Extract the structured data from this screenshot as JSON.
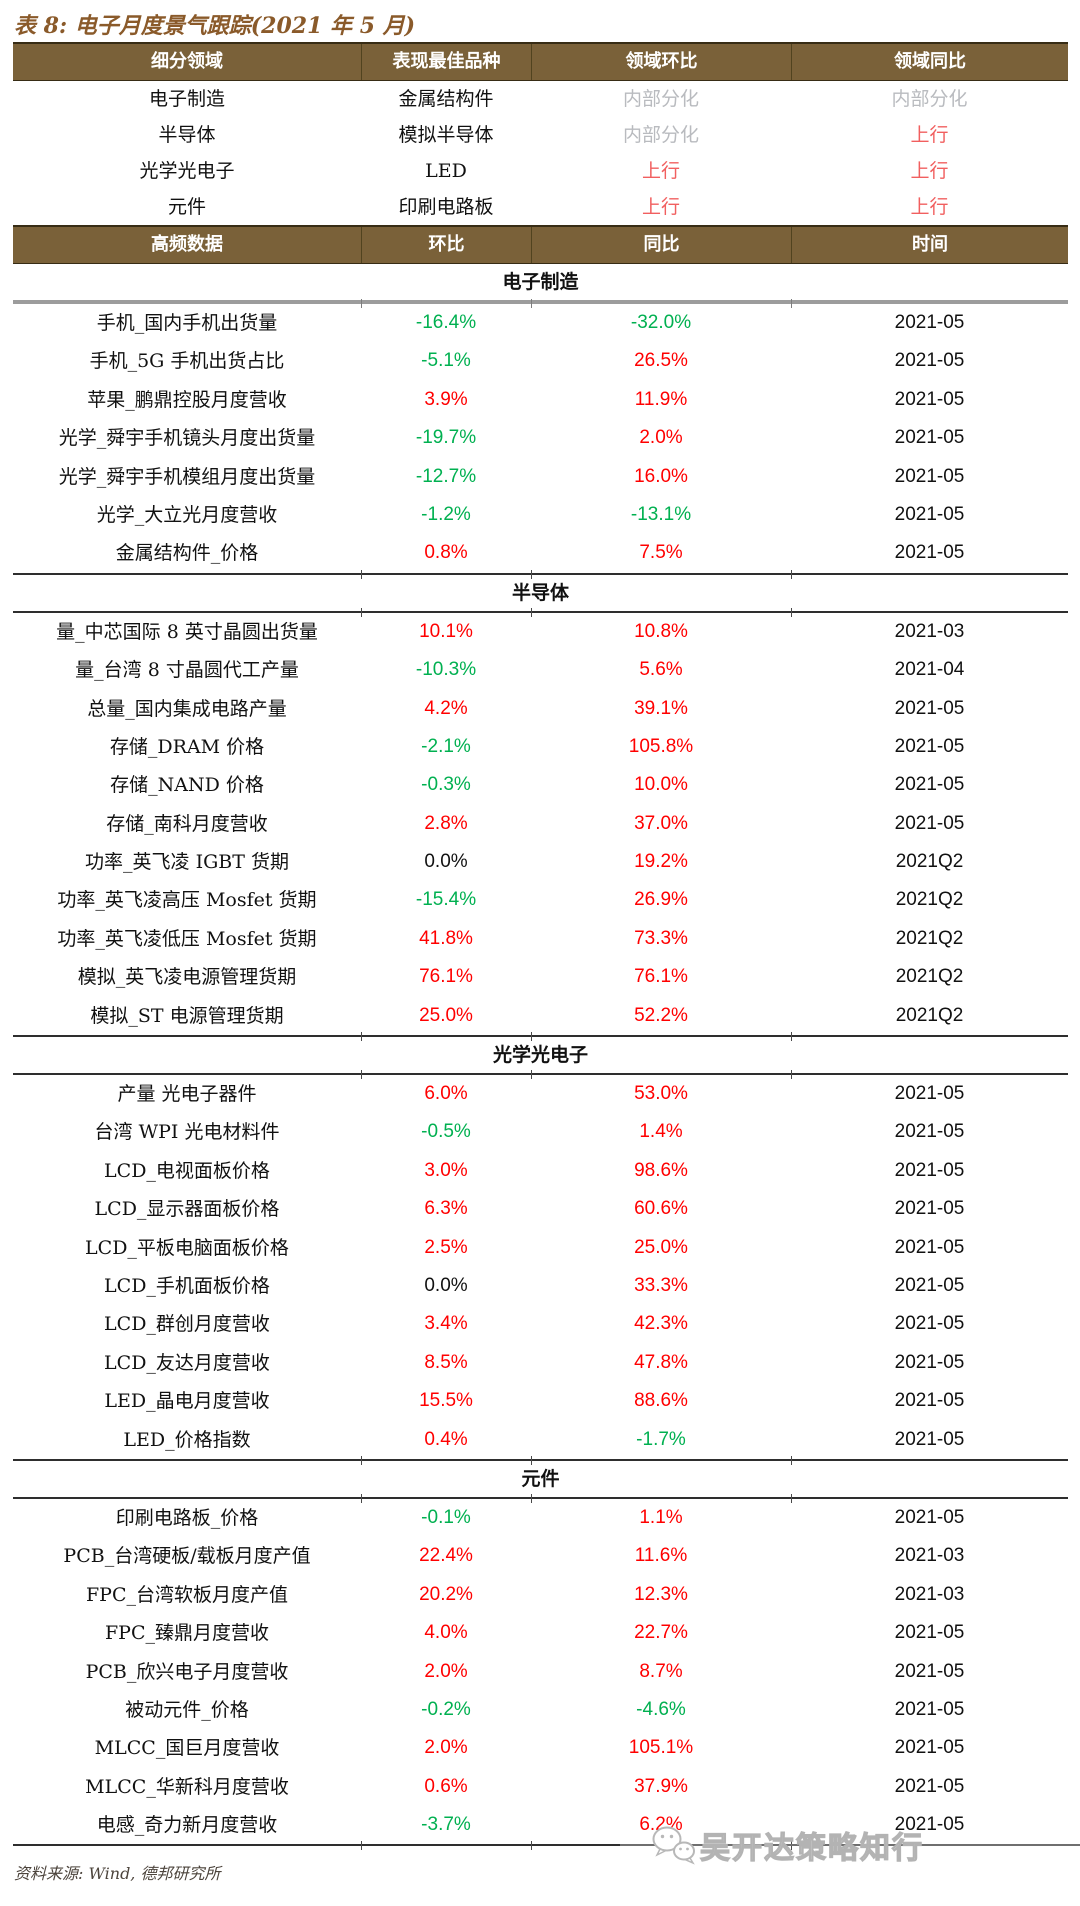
{
  "title": "表 8: 电子月度景气跟踪(2021 年 5 月)",
  "summary_table": {
    "headers": [
      "细分领域",
      "表现最佳品种",
      "领域环比",
      "领域同比"
    ],
    "rows": [
      {
        "field": "电子制造",
        "best": "金属结构件",
        "mom": "内部分化",
        "mom_type": "neutral",
        "yoy": "内部分化",
        "yoy_type": "neutral"
      },
      {
        "field": "半导体",
        "best": "模拟半导体",
        "mom": "内部分化",
        "mom_type": "neutral",
        "yoy": "上行",
        "yoy_type": "up"
      },
      {
        "field": "光学光电子",
        "best": "LED",
        "mom": "上行",
        "mom_type": "up",
        "yoy": "上行",
        "yoy_type": "up"
      },
      {
        "field": "元件",
        "best": "印刷电路板",
        "mom": "上行",
        "mom_type": "up",
        "yoy": "上行",
        "yoy_type": "up"
      }
    ]
  },
  "detail_table": {
    "headers": [
      "高频数据",
      "环比",
      "同比",
      "时间"
    ],
    "sections": [
      {
        "name": "电子制造",
        "rows": [
          {
            "label": "手机_国内手机出货量",
            "mom": "-16.4%",
            "yoy": "-32.0%",
            "time": "2021-05"
          },
          {
            "label": "手机_5G 手机出货占比",
            "mom": "-5.1%",
            "yoy": "26.5%",
            "time": "2021-05"
          },
          {
            "label": "苹果_鹏鼎控股月度营收",
            "mom": "3.9%",
            "yoy": "11.9%",
            "time": "2021-05"
          },
          {
            "label": "光学_舜宇手机镜头月度出货量",
            "mom": "-19.7%",
            "yoy": "2.0%",
            "time": "2021-05"
          },
          {
            "label": "光学_舜宇手机模组月度出货量",
            "mom": "-12.7%",
            "yoy": "16.0%",
            "time": "2021-05"
          },
          {
            "label": "光学_大立光月度营收",
            "mom": "-1.2%",
            "yoy": "-13.1%",
            "time": "2021-05"
          },
          {
            "label": "金属结构件_价格",
            "mom": "0.8%",
            "yoy": "7.5%",
            "time": "2021-05"
          }
        ]
      },
      {
        "name": "半导体",
        "rows": [
          {
            "label": "量_中芯国际 8 英寸晶圆出货量",
            "mom": "10.1%",
            "yoy": "10.8%",
            "time": "2021-03"
          },
          {
            "label": "量_台湾 8 寸晶圆代工产量",
            "mom": "-10.3%",
            "yoy": "5.6%",
            "time": "2021-04"
          },
          {
            "label": "总量_国内集成电路产量",
            "mom": "4.2%",
            "yoy": "39.1%",
            "time": "2021-05"
          },
          {
            "label": "存储_DRAM 价格",
            "mom": "-2.1%",
            "yoy": "105.8%",
            "time": "2021-05"
          },
          {
            "label": "存储_NAND 价格",
            "mom": "-0.3%",
            "yoy": "10.0%",
            "time": "2021-05"
          },
          {
            "label": "存储_南科月度营收",
            "mom": "2.8%",
            "yoy": "37.0%",
            "time": "2021-05"
          },
          {
            "label": "功率_英飞凌 IGBT 货期",
            "mom": "0.0%",
            "yoy": "19.2%",
            "time": "2021Q2"
          },
          {
            "label": "功率_英飞凌高压 Mosfet 货期",
            "mom": "-15.4%",
            "yoy": "26.9%",
            "time": "2021Q2"
          },
          {
            "label": "功率_英飞凌低压 Mosfet 货期",
            "mom": "41.8%",
            "yoy": "73.3%",
            "time": "2021Q2"
          },
          {
            "label": "模拟_英飞凌电源管理货期",
            "mom": "76.1%",
            "yoy": "76.1%",
            "time": "2021Q2"
          },
          {
            "label": "模拟_ST 电源管理货期",
            "mom": "25.0%",
            "yoy": "52.2%",
            "time": "2021Q2"
          }
        ]
      },
      {
        "name": "光学光电子",
        "rows": [
          {
            "label": "产量 光电子器件",
            "mom": "6.0%",
            "yoy": "53.0%",
            "time": "2021-05"
          },
          {
            "label": "台湾 WPI 光电材料件",
            "mom": "-0.5%",
            "yoy": "1.4%",
            "time": "2021-05"
          },
          {
            "label": "LCD_电视面板价格",
            "mom": "3.0%",
            "yoy": "98.6%",
            "time": "2021-05"
          },
          {
            "label": "LCD_显示器面板价格",
            "mom": "6.3%",
            "yoy": "60.6%",
            "time": "2021-05"
          },
          {
            "label": "LCD_平板电脑面板价格",
            "mom": "2.5%",
            "yoy": "25.0%",
            "time": "2021-05"
          },
          {
            "label": "LCD_手机面板价格",
            "mom": "0.0%",
            "yoy": "33.3%",
            "time": "2021-05"
          },
          {
            "label": "LCD_群创月度营收",
            "mom": "3.4%",
            "yoy": "42.3%",
            "time": "2021-05"
          },
          {
            "label": "LCD_友达月度营收",
            "mom": "8.5%",
            "yoy": "47.8%",
            "time": "2021-05"
          },
          {
            "label": "LED_晶电月度营收",
            "mom": "15.5%",
            "yoy": "88.6%",
            "time": "2021-05"
          },
          {
            "label": "LED_价格指数",
            "mom": "0.4%",
            "yoy": "-1.7%",
            "time": "2021-05"
          }
        ]
      },
      {
        "name": "元件",
        "rows": [
          {
            "label": "印刷电路板_价格",
            "mom": "-0.1%",
            "yoy": "1.1%",
            "time": "2021-05"
          },
          {
            "label": "PCB_台湾硬板/载板月度产值",
            "mom": "22.4%",
            "yoy": "11.6%",
            "time": "2021-03"
          },
          {
            "label": "FPC_台湾软板月度产值",
            "mom": "20.2%",
            "yoy": "12.3%",
            "time": "2021-03"
          },
          {
            "label": "FPC_臻鼎月度营收",
            "mom": "4.0%",
            "yoy": "22.7%",
            "time": "2021-05"
          },
          {
            "label": "PCB_欣兴电子月度营收",
            "mom": "2.0%",
            "yoy": "8.7%",
            "time": "2021-05"
          },
          {
            "label": "被动元件_价格",
            "mom": "-0.2%",
            "yoy": "-4.6%",
            "time": "2021-05"
          },
          {
            "label": "MLCC_国巨月度营收",
            "mom": "2.0%",
            "yoy": "105.1%",
            "time": "2021-05"
          },
          {
            "label": "MLCC_华新科月度营收",
            "mom": "0.6%",
            "yoy": "37.9%",
            "time": "2021-05"
          },
          {
            "label": "电感_奇力新月度营收",
            "mom": "-3.7%",
            "yoy": "6.2%",
            "time": "2021-05"
          }
        ]
      }
    ]
  },
  "footer": {
    "source": "资料来源: Wind, 德邦研究所"
  },
  "watermark": {
    "text": "吴开达策略知行",
    "icon": "wechat-icon"
  },
  "colors": {
    "header_bg": "#7A6139",
    "header_text": "#FFFFFF",
    "positive_red": "#FF0000",
    "negative_green": "#00B050",
    "neutral_gray": "#B9BBBF",
    "up_red": "#F15F5F",
    "title_brown": "#8A5A2A",
    "footer_text": "#4C443C",
    "time_text": "#111111"
  }
}
